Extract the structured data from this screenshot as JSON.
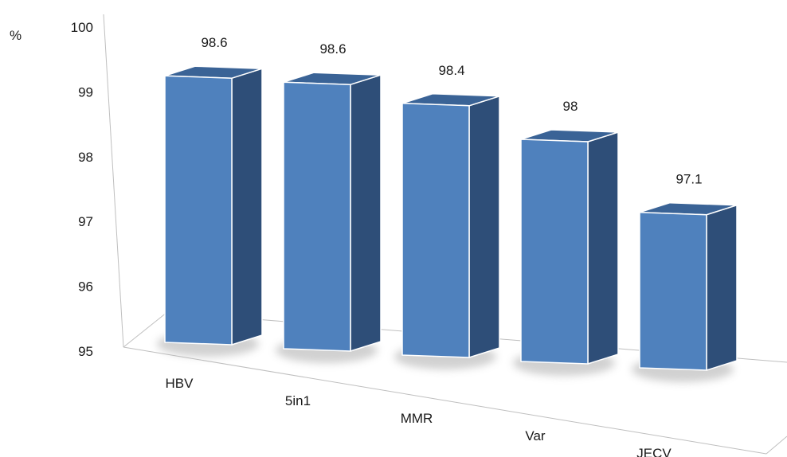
{
  "chart_data": {
    "type": "bar",
    "title": "",
    "ylabel": "%",
    "xlabel": "",
    "ylim": [
      95,
      100
    ],
    "yticks": [
      95,
      96,
      97,
      98,
      99,
      100
    ],
    "categories": [
      "HBV",
      "5in1",
      "MMR",
      "Var",
      "JECV"
    ],
    "values": [
      98.6,
      98.6,
      98.4,
      98,
      97.1
    ],
    "value_labels": [
      "98.6",
      "98.6",
      "98.4",
      "98",
      "97.1"
    ],
    "style": "3d-perspective",
    "grid": false,
    "legend": "none",
    "colors": {
      "bar_front": "#4F81BD",
      "bar_side": "#2E4E78",
      "bar_top": "#3A6396",
      "axis": "#BFBFBF"
    }
  }
}
